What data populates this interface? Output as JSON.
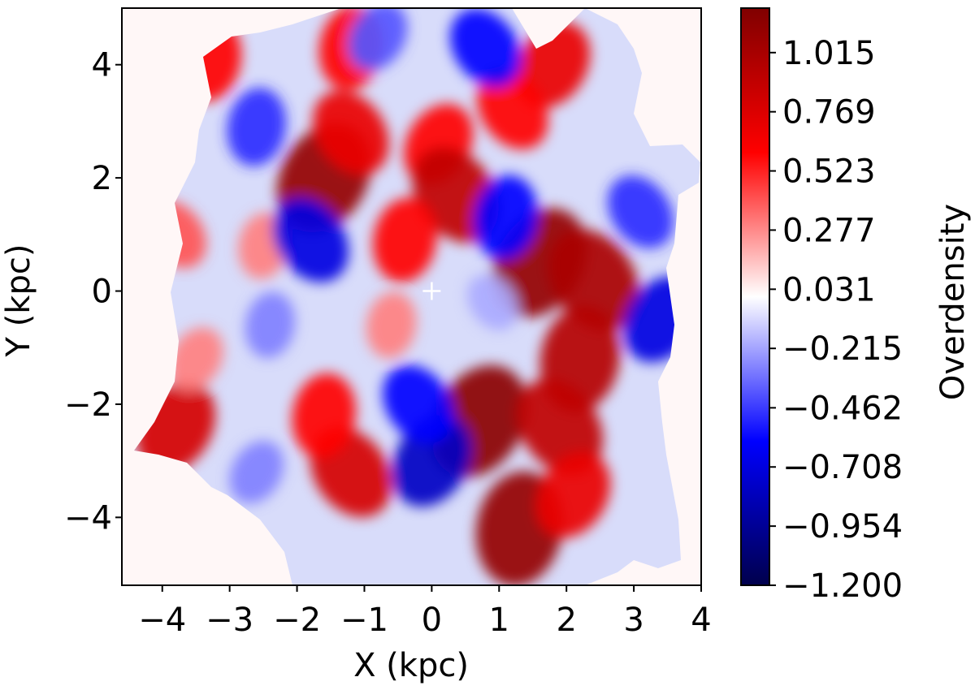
{
  "chart_data": {
    "type": "heatmap",
    "subtype": "filled-contour",
    "title": "",
    "xlabel": "X (kpc)",
    "ylabel": "Y (kpc)",
    "xlim": [
      -4.6,
      4.0
    ],
    "ylim": [
      -5.2,
      5.0
    ],
    "xticks": [
      -4,
      -3,
      -2,
      -1,
      0,
      1,
      2,
      3,
      4
    ],
    "xtick_labels": [
      "−4",
      "−3",
      "−2",
      "−1",
      "0",
      "1",
      "2",
      "3",
      "4"
    ],
    "yticks": [
      -4,
      -2,
      0,
      2,
      4
    ],
    "ytick_labels": [
      "−4",
      "−2",
      "0",
      "2",
      "4"
    ],
    "grid": false,
    "colormap": "seismic",
    "colorbar": {
      "label": "Overdensity",
      "range": [
        -1.2,
        1.2
      ],
      "ticks": [
        1.015,
        0.769,
        0.523,
        0.277,
        0.031,
        -0.215,
        -0.462,
        -0.708,
        -0.954,
        -1.2
      ],
      "tick_labels": [
        "1.015",
        "0.769",
        "0.523",
        "0.277",
        "0.031",
        "−0.215",
        "−0.462",
        "−0.708",
        "−0.954",
        "−1.200"
      ]
    },
    "marker": {
      "x": 0,
      "y": 0,
      "symbol": "+",
      "color": "#ffffff"
    },
    "features": [
      {
        "x": -1.6,
        "y": 2.0,
        "value": 1.1
      },
      {
        "x": -1.2,
        "y": 2.8,
        "value": 0.7
      },
      {
        "x": -1.2,
        "y": 4.3,
        "value": 0.6
      },
      {
        "x": 1.8,
        "y": 4.0,
        "value": 0.7
      },
      {
        "x": 1.2,
        "y": 3.2,
        "value": 0.6
      },
      {
        "x": -3.3,
        "y": 4.1,
        "value": 0.6
      },
      {
        "x": 0.1,
        "y": 2.6,
        "value": 0.6
      },
      {
        "x": 0.35,
        "y": 1.7,
        "value": 0.9
      },
      {
        "x": -0.4,
        "y": 0.9,
        "value": 0.6
      },
      {
        "x": 1.6,
        "y": 0.5,
        "value": 1.1
      },
      {
        "x": 2.4,
        "y": 0.2,
        "value": 1.0
      },
      {
        "x": 2.2,
        "y": -1.2,
        "value": 0.95
      },
      {
        "x": 0.7,
        "y": -2.3,
        "value": 1.15
      },
      {
        "x": 1.9,
        "y": -2.4,
        "value": 0.9
      },
      {
        "x": 1.3,
        "y": -4.2,
        "value": 1.1
      },
      {
        "x": 2.1,
        "y": -3.6,
        "value": 0.7
      },
      {
        "x": -1.2,
        "y": -3.2,
        "value": 0.8
      },
      {
        "x": -1.6,
        "y": -2.2,
        "value": 0.6
      },
      {
        "x": -3.8,
        "y": -2.4,
        "value": 0.8
      },
      {
        "x": -3.8,
        "y": 1.0,
        "value": 0.4
      },
      {
        "x": -2.5,
        "y": 0.8,
        "value": 0.3
      },
      {
        "x": -3.5,
        "y": -1.2,
        "value": 0.3
      },
      {
        "x": -1.8,
        "y": 0.9,
        "value": -0.7
      },
      {
        "x": -0.6,
        "y": -0.6,
        "value": 0.3
      },
      {
        "x": 0.0,
        "y": -3.0,
        "value": -0.8
      },
      {
        "x": -0.2,
        "y": -2.0,
        "value": -0.6
      },
      {
        "x": 1.1,
        "y": 1.3,
        "value": -0.6
      },
      {
        "x": 3.4,
        "y": -0.5,
        "value": -0.7
      },
      {
        "x": 3.1,
        "y": 1.4,
        "value": -0.5
      },
      {
        "x": -2.6,
        "y": 2.9,
        "value": -0.5
      },
      {
        "x": -0.8,
        "y": 4.5,
        "value": -0.4
      },
      {
        "x": 0.8,
        "y": 4.3,
        "value": -0.6
      },
      {
        "x": -2.4,
        "y": -0.6,
        "value": -0.3
      },
      {
        "x": -2.6,
        "y": -3.2,
        "value": -0.3
      },
      {
        "x": 0.9,
        "y": -0.2,
        "value": -0.2
      }
    ]
  },
  "colors": {
    "positive": "#ff0000",
    "negative": "#0000ff",
    "neutral": "#fff7f7",
    "background": "#ffffff"
  }
}
